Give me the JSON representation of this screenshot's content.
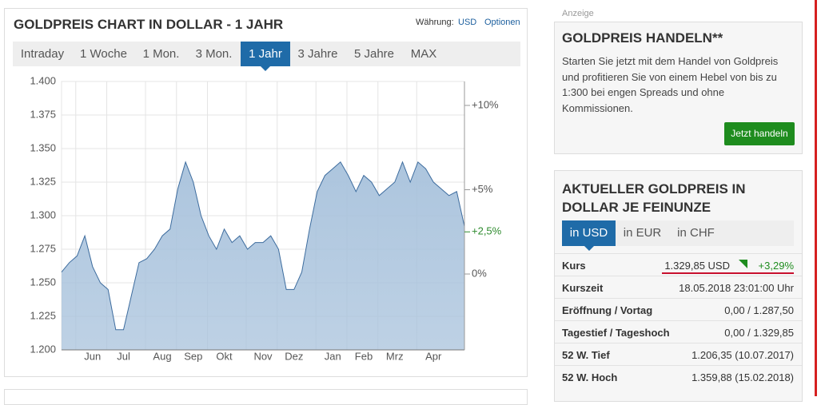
{
  "header": {
    "title": "GOLDPREIS CHART IN DOLLAR - 1 JAHR",
    "currency_label": "Währung:",
    "currency": "USD",
    "options": "Optionen"
  },
  "range_tabs": {
    "items": [
      "Intraday",
      "1 Woche",
      "1 Mon.",
      "3 Mon.",
      "1 Jahr",
      "3 Jahre",
      "5 Jahre",
      "MAX"
    ],
    "active": 4
  },
  "chart_data": {
    "type": "area",
    "categories": [
      null,
      null,
      null,
      null,
      "Jun",
      null,
      null,
      null,
      "Jul",
      null,
      null,
      null,
      null,
      "Aug",
      null,
      null,
      null,
      "Sep",
      null,
      null,
      null,
      "Okt",
      null,
      null,
      null,
      null,
      "Nov",
      null,
      null,
      null,
      "Dez",
      null,
      null,
      null,
      null,
      "Jan",
      null,
      null,
      null,
      "Feb",
      null,
      null,
      null,
      "Mrz",
      null,
      null,
      null,
      null,
      "Apr",
      null,
      null,
      null,
      null
    ],
    "values": [
      1258,
      1265,
      1270,
      1285,
      1262,
      1250,
      1245,
      1215,
      1215,
      1240,
      1265,
      1268,
      1275,
      1285,
      1290,
      1320,
      1340,
      1325,
      1300,
      1285,
      1275,
      1290,
      1280,
      1285,
      1275,
      1280,
      1280,
      1285,
      1275,
      1245,
      1245,
      1258,
      1290,
      1318,
      1330,
      1335,
      1340,
      1330,
      1318,
      1330,
      1325,
      1315,
      1320,
      1325,
      1340,
      1325,
      1340,
      1335,
      1325,
      1320,
      1315,
      1318,
      1292
    ],
    "color": "#3d6c9e",
    "area_color": "#a8c2dc",
    "ylim": [
      1200,
      1400
    ],
    "yticks": [
      {
        "value": 1200,
        "label": "1.200"
      },
      {
        "value": 1225,
        "label": "1.225"
      },
      {
        "value": 1250,
        "label": "1.250"
      },
      {
        "value": 1275,
        "label": "1.275"
      },
      {
        "value": 1300,
        "label": "1.300"
      },
      {
        "value": 1325,
        "label": "1.325"
      },
      {
        "value": 1350,
        "label": "1.350"
      },
      {
        "value": 1375,
        "label": "1.375"
      },
      {
        "value": 1400,
        "label": "1.400"
      }
    ],
    "y2lim": [
      -4.5,
      11.42
    ],
    "y2ticks": [
      {
        "value": 0,
        "label": "0%"
      },
      {
        "value": 5,
        "label": "+5%"
      },
      {
        "value": 10,
        "label": "+10%"
      }
    ],
    "y2_marker": {
      "value": 2.5,
      "label": "+2,5%",
      "color": "#2e8b2e"
    },
    "grid": true
  },
  "ad": {
    "label": "Anzeige",
    "title": "GOLDPREIS HANDELN**",
    "text": "Starten Sie jetzt mit dem Handel von Goldpreis und profitieren Sie von einem Hebel von bis zu 1:300 bei engen Spreads und ohne Kommissionen.",
    "button": "Jetzt handeln"
  },
  "quote": {
    "title": "AKTUELLER GOLDPREIS IN DOLLAR JE FEINUNZE",
    "currency_tabs": [
      "in USD",
      "in EUR",
      "in CHF"
    ],
    "active": 0,
    "rows": [
      [
        "Kurs",
        "1.329,85 USD",
        "+3,29%"
      ],
      [
        "Kurszeit",
        "18.05.2018 23:01:00 Uhr"
      ],
      [
        "Eröffnung / Vortag",
        "0,00 / 1.287,50"
      ],
      [
        "Tagestief / Tageshoch",
        "0,00 / 1.329,85"
      ],
      [
        "52 W. Tief",
        "1.206,35 (10.07.2017)"
      ],
      [
        "52 W. Hoch",
        "1.359,88 (15.02.2018)"
      ]
    ]
  }
}
